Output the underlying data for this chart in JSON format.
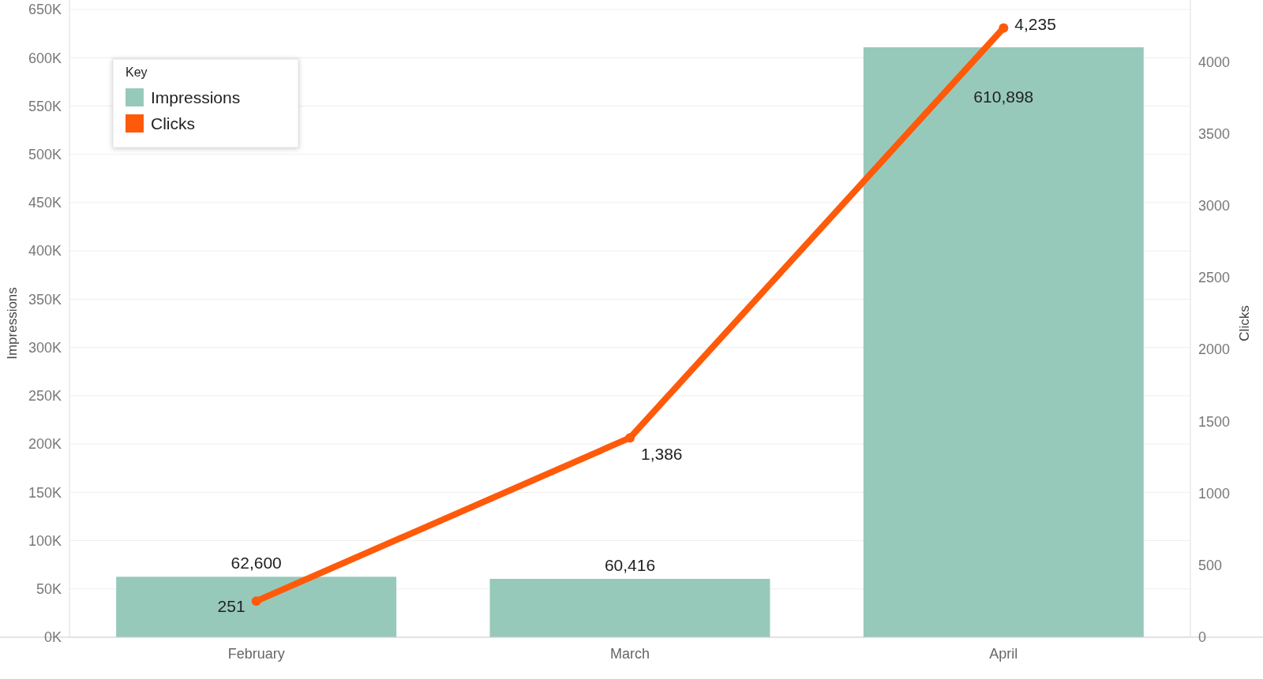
{
  "chart_data": {
    "type": "bar",
    "categories": [
      "February",
      "March",
      "April"
    ],
    "series": [
      {
        "name": "Impressions",
        "color": "#97c9bb",
        "values": [
          62600,
          60416,
          610898
        ],
        "value_labels": [
          "62,600",
          "60,416",
          "610,898"
        ]
      },
      {
        "name": "Clicks",
        "type": "line",
        "axis": "y2",
        "color": "#ff5a0a",
        "values": [
          251,
          1386,
          4235
        ],
        "value_labels": [
          "251",
          "1,386",
          "4,235"
        ]
      }
    ],
    "ylabel": "Impressions",
    "y2label": "Clicks",
    "legend_title": "Key",
    "legend": "top left",
    "grid": "y",
    "marker": "circle",
    "line_style": "solid",
    "ylim": [
      0,
      650000
    ],
    "yticks": [
      {
        "value": 0,
        "label": "0K"
      },
      {
        "value": 50000,
        "label": "50K"
      },
      {
        "value": 100000,
        "label": "100K"
      },
      {
        "value": 150000,
        "label": "150K"
      },
      {
        "value": 200000,
        "label": "200K"
      },
      {
        "value": 250000,
        "label": "250K"
      },
      {
        "value": 300000,
        "label": "300K"
      },
      {
        "value": 350000,
        "label": "350K"
      },
      {
        "value": 400000,
        "label": "400K"
      },
      {
        "value": 450000,
        "label": "450K"
      },
      {
        "value": 500000,
        "label": "500K"
      },
      {
        "value": 550000,
        "label": "550K"
      },
      {
        "value": 600000,
        "label": "600K"
      },
      {
        "value": 650000,
        "label": "650K"
      }
    ],
    "y2lim": [
      0,
      4364
    ],
    "y2ticks": [
      0,
      500,
      1000,
      1500,
      2000,
      2500,
      3000,
      3500,
      4000
    ]
  }
}
